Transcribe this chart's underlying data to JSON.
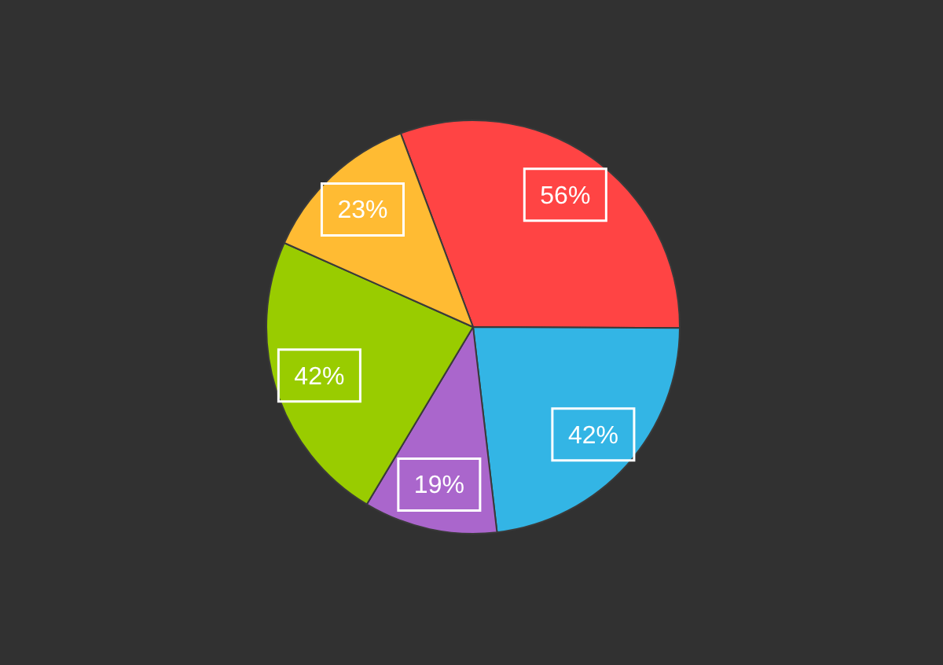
{
  "chart_data": {
    "type": "pie",
    "categories": [
      null,
      null,
      null,
      null,
      null
    ],
    "values": [
      56,
      42,
      19,
      42,
      23
    ],
    "colors": [
      "#ff4444",
      "#33b5e5",
      "#aa66cc",
      "#99cc00",
      "#ffbb33"
    ],
    "value_labels": [
      "56%",
      "42%",
      "19%",
      "42%",
      "23%"
    ]
  }
}
